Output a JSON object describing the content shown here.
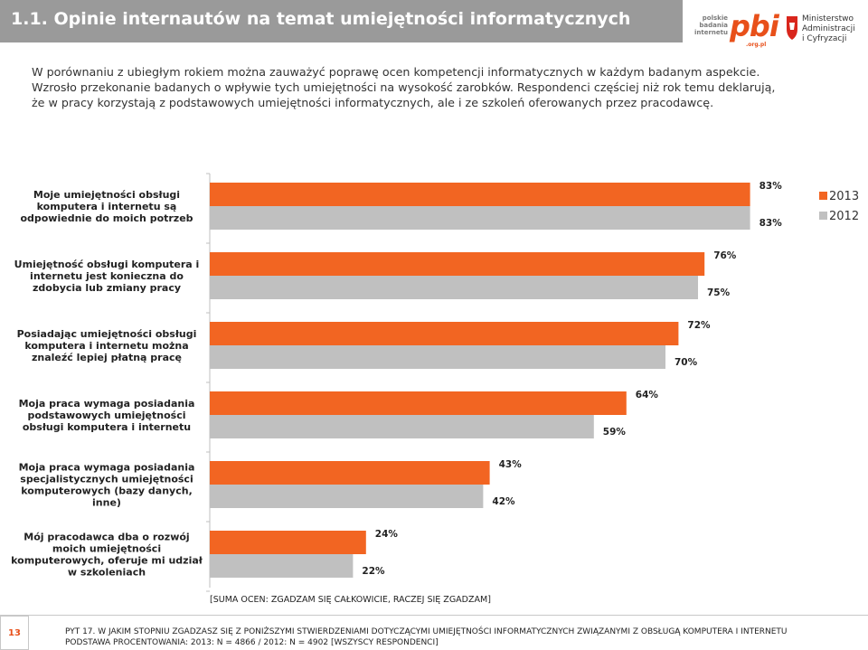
{
  "header": {
    "title": "1.1. Opinie internautów na temat umiejętności informatycznych",
    "pbi_logo": {
      "line1": "polskie",
      "line2": "badania",
      "line3": "internetu",
      "mark": "pbi",
      "domain": ".org.pl"
    },
    "ministry_logo": {
      "line1": "Ministerstwo",
      "line2": "Administracji",
      "line3": "i Cyfryzacji"
    }
  },
  "intro": {
    "line1": "W porównaniu z ubiegłym rokiem można zauważyć poprawę ocen kompetencji informatycznych w każdym badanym aspekcie.",
    "line2": "Wzrosło przekonanie badanych o wpływie tych umiejętności na wysokość zarobków. Respondenci częściej niż rok temu deklarują,",
    "line3": "że w pracy korzystają z podstawowych umiejętności informatycznych, ale i ze szkoleń oferowanych przez pracodawcę."
  },
  "chart_data": {
    "type": "bar",
    "orientation": "horizontal",
    "categories": [
      [
        "Moje umiejętności obsługi",
        "komputera i internetu są",
        "odpowiednie do moich potrzeb"
      ],
      [
        "Umiejętność obsługi komputera i",
        "internetu jest konieczna do",
        "zdobycia lub zmiany pracy"
      ],
      [
        "Posiadając umiejętności obsługi",
        "komputera i internetu można",
        "znaleźć lepiej płatną pracę"
      ],
      [
        "Moja praca wymaga posiadania",
        "podstawowych umiejętności",
        "obsługi komputera i internetu"
      ],
      [
        "Moja praca wymaga posiadania",
        "specjalistycznych umiejętności",
        "komputerowych (bazy danych,",
        "inne)"
      ],
      [
        "Mój pracodawca dba o rozwój",
        "moich umiejętności",
        "komputerowych, oferuje mi udział",
        "w szkoleniach"
      ]
    ],
    "series": [
      {
        "name": "2013",
        "color": "#f26522",
        "values": [
          83,
          76,
          72,
          64,
          43,
          24
        ]
      },
      {
        "name": "2012",
        "color": "#c0c0c0",
        "values": [
          83,
          75,
          70,
          59,
          42,
          22
        ]
      }
    ],
    "xlim": [
      0,
      100
    ],
    "value_suffix": "%",
    "legend": "top-right"
  },
  "note": "[SUMA OCEN: ZGADZAM SIĘ CAŁKOWICIE, RACZEJ SIĘ ZGADZAM]",
  "footer": {
    "page_number": "13",
    "question": "PYT 17. W JAKIM STOPNIU ZGADZASZ SIĘ Z PONIŻSZYMI STWIERDZENIAMI DOTYCZĄCYMI UMIEJĘTNOŚCI INFORMATYCZNYCH ZWIĄZANYMI Z OBSŁUGĄ KOMPUTERA I INTERNETU",
    "base": "PODSTAWA PROCENTOWANIA: 2013: N = 4866 / 2012: N = 4902 [WSZYSCY RESPONDENCI]"
  }
}
